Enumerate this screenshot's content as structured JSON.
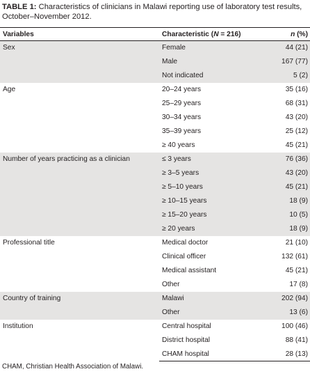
{
  "caption": {
    "label": "TABLE 1:",
    "text": " Characteristics of clinicians in Malawi reporting use of laboratory test results, October–November 2012."
  },
  "table": {
    "headers": {
      "variables": "Variables",
      "characteristic": "Characteristic (N = 216)",
      "n": "n (%)"
    },
    "groups": [
      {
        "variable": "Sex",
        "rows": [
          {
            "characteristic": "Female",
            "n": "44 (21)"
          },
          {
            "characteristic": "Male",
            "n": "167 (77)"
          },
          {
            "characteristic": "Not indicated",
            "n": "5 (2)"
          }
        ]
      },
      {
        "variable": "Age",
        "rows": [
          {
            "characteristic": "20–24 years",
            "n": "35 (16)"
          },
          {
            "characteristic": "25–29 years",
            "n": "68 (31)"
          },
          {
            "characteristic": "30–34 years",
            "n": "43 (20)"
          },
          {
            "characteristic": "35–39 years",
            "n": "25 (12)"
          },
          {
            "characteristic": "≥ 40 years",
            "n": "45 (21)"
          }
        ]
      },
      {
        "variable": "Number of years practicing as a clinician",
        "rows": [
          {
            "characteristic": "≤ 3 years",
            "n": "76 (36)"
          },
          {
            "characteristic": "≥ 3–5 years",
            "n": "43 (20)"
          },
          {
            "characteristic": "≥ 5–10 years",
            "n": "45 (21)"
          },
          {
            "characteristic": "≥ 10–15 years",
            "n": "18 (9)"
          },
          {
            "characteristic": "≥ 15–20 years",
            "n": "10 (5)"
          },
          {
            "characteristic": "≥ 20 years",
            "n": "18 (9)"
          }
        ]
      },
      {
        "variable": "Professional title",
        "rows": [
          {
            "characteristic": "Medical doctor",
            "n": "21 (10)"
          },
          {
            "characteristic": "Clinical officer",
            "n": "132 (61)"
          },
          {
            "characteristic": "Medical assistant",
            "n": "45 (21)"
          },
          {
            "characteristic": "Other",
            "n": "17 (8)"
          }
        ]
      },
      {
        "variable": "Country of training",
        "rows": [
          {
            "characteristic": "Malawi",
            "n": "202 (94)"
          },
          {
            "characteristic": "Other",
            "n": "13 (6)"
          }
        ]
      },
      {
        "variable": "Institution",
        "rows": [
          {
            "characteristic": "Central hospital",
            "n": "100 (46)"
          },
          {
            "characteristic": "District hospital",
            "n": "88 (41)"
          },
          {
            "characteristic": "CHAM hospital",
            "n": "28 (13)"
          }
        ]
      }
    ]
  },
  "footnote": "CHAM, Christian Health Association of Malawi."
}
